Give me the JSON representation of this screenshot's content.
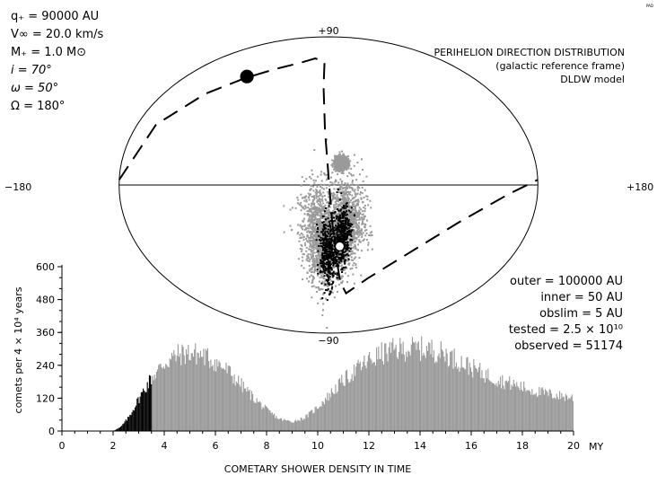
{
  "corner_mark": "PAD",
  "params": [
    "q₊ = 90000 AU",
    "V∞ = 20.0 km/s",
    "M₊ = 1.0 M⊙",
    "i =  70°",
    "ω =  50°",
    "Ω = 180°"
  ],
  "title_lines": [
    "PERIHELION DIRECTION DISTRIBUTION",
    "(galactic reference frame)",
    "DLDW model"
  ],
  "info_lines": [
    "outer = 100000 AU",
    "inner = 50 AU",
    "obslim = 5 AU",
    "tested = 2.5 × 10¹⁰",
    "observed = 51174"
  ],
  "colors": {
    "scatter_gray": "#9a9a9a",
    "scatter_black": "#000000",
    "histogram_gray": "#9a9a9a",
    "histogram_black": "#000000"
  },
  "chart_data": [
    {
      "type": "scatter",
      "projection": "aitoff-hammer (galactic longitude / latitude)",
      "title": "PERIHELION DIRECTION DISTRIBUTION",
      "tick_labels": {
        "top": "+90",
        "bottom": "−90",
        "left": "−180",
        "right": "+180"
      },
      "xlim": [
        -180,
        180
      ],
      "ylim": [
        -90,
        90
      ],
      "orbit_path_galactic_degrees": [
        [
          -180,
          2
        ],
        [
          -160,
          26
        ],
        [
          -135,
          44
        ],
        [
          -110,
          56
        ],
        [
          -85,
          64
        ],
        [
          -55,
          70
        ],
        [
          -30,
          74
        ],
        [
          -8,
          72
        ],
        [
          -6,
          56
        ],
        [
          -3,
          30
        ],
        [
          0,
          5
        ],
        [
          3,
          -20
        ],
        [
          8,
          -42
        ],
        [
          14,
          -55
        ],
        [
          25,
          -62
        ],
        [
          45,
          -52
        ],
        [
          75,
          -36
        ],
        [
          110,
          -18
        ],
        [
          150,
          -4
        ],
        [
          180,
          2
        ]
      ],
      "markers": [
        {
          "name": "start",
          "filled": true,
          "lon": -110,
          "lat": 57
        },
        {
          "name": "end",
          "filled": false,
          "lon": 10,
          "lat": -34
        }
      ],
      "clusters": [
        {
          "name": "gray-left-lobe",
          "color": "gray",
          "lon": -8,
          "lat": -28,
          "spread_lon": 13,
          "spread_lat": 24
        },
        {
          "name": "gray-right-lobe",
          "color": "gray",
          "lon": 14,
          "lat": -22,
          "spread_lon": 13,
          "spread_lat": 22
        },
        {
          "name": "gray-upper-patch",
          "color": "gray",
          "lon": 10,
          "lat": 12,
          "spread_lon": 4,
          "spread_lat": 3
        },
        {
          "name": "black-left-lobe",
          "color": "black",
          "lon": 0,
          "lat": -38,
          "spread_lon": 7,
          "spread_lat": 17
        },
        {
          "name": "black-right-lobe",
          "color": "black",
          "lon": 12,
          "lat": -28,
          "spread_lon": 6,
          "spread_lat": 14
        }
      ]
    },
    {
      "type": "bar",
      "xlabel": "COMETARY SHOWER DENSITY IN TIME",
      "ylabel": "comets per 4 × 10⁴ years",
      "x_unit": "MY",
      "xlim": [
        0,
        20
      ],
      "ylim": [
        0,
        600
      ],
      "x_ticks": [
        0,
        2,
        4,
        6,
        8,
        10,
        12,
        14,
        16,
        18,
        20
      ],
      "y_ticks": [
        0,
        120,
        240,
        360,
        480,
        600
      ],
      "bin_width_my": 0.04,
      "black_until_my": 3.5,
      "envelope": {
        "x": [
          0,
          2.0,
          2.3,
          2.6,
          3.0,
          3.4,
          3.5,
          4.0,
          4.5,
          5.0,
          5.5,
          6.0,
          6.5,
          7.0,
          7.5,
          8.0,
          8.5,
          9.0,
          9.5,
          10.0,
          10.5,
          11.0,
          11.5,
          12.0,
          12.5,
          13.0,
          13.5,
          14.0,
          14.5,
          15.0,
          15.5,
          16.0,
          16.5,
          17.0,
          17.5,
          18.0,
          18.5,
          19.0,
          19.5,
          20.0
        ],
        "y": [
          0,
          0,
          15,
          50,
          120,
          185,
          200,
          255,
          285,
          295,
          285,
          260,
          225,
          175,
          125,
          80,
          45,
          35,
          50,
          90,
          140,
          190,
          230,
          265,
          290,
          305,
          310,
          310,
          305,
          290,
          265,
          240,
          215,
          195,
          180,
          165,
          150,
          140,
          132,
          125
        ]
      }
    }
  ]
}
